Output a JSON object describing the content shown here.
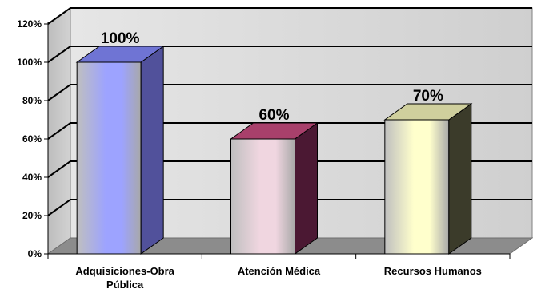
{
  "chart_data": {
    "type": "bar",
    "style": "3d-column",
    "categories": [
      "Adquisiciones-Obra Pública",
      "Atención Médica",
      "Recursos Humanos"
    ],
    "category_lines": [
      [
        "Adquisiciones-Obra",
        "Pública"
      ],
      [
        "Atención Médica"
      ],
      [
        "Recursos Humanos"
      ]
    ],
    "values": [
      100,
      60,
      70
    ],
    "data_labels": [
      "100%",
      "60%",
      "70%"
    ],
    "ylim": [
      0,
      120
    ],
    "yticks": [
      0,
      20,
      40,
      60,
      80,
      100,
      120
    ],
    "ytick_labels": [
      "0%",
      "20%",
      "40%",
      "60%",
      "80%",
      "100%",
      "120%"
    ],
    "grid": true,
    "title": "",
    "xlabel": "",
    "ylabel": "",
    "bar_colors": [
      {
        "light": "#9da3ff",
        "dark": "#51519b",
        "top": "#6f74d4"
      },
      {
        "light": "#f0d6e0",
        "dark": "#4b1833",
        "top": "#a8406b"
      },
      {
        "light": "#ffffcc",
        "dark": "#3b3b2a",
        "top": "#cfcf9d"
      }
    ]
  }
}
